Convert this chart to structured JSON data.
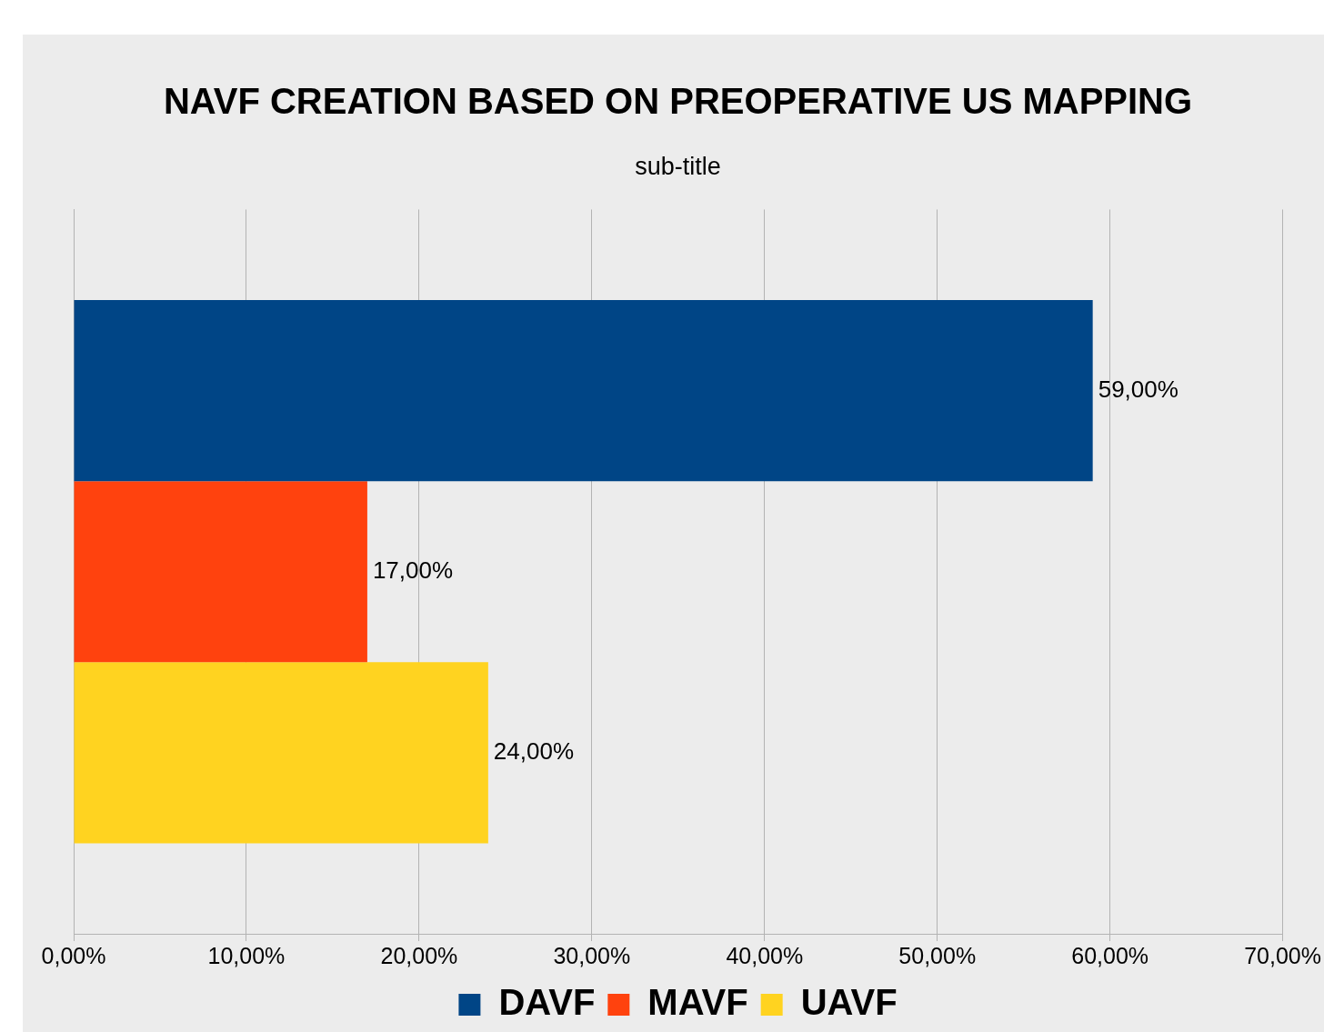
{
  "chart_data": {
    "type": "bar",
    "orientation": "horizontal",
    "title": "NAVF CREATION BASED ON PREOPERATIVE US MAPPING",
    "subtitle": "sub-title",
    "categories": [
      null
    ],
    "series": [
      {
        "name": "DAVF",
        "color": "#004586",
        "values": [
          59
        ],
        "value_labels": [
          "59,00%"
        ]
      },
      {
        "name": "MAVF",
        "color": "#ff420e",
        "values": [
          17
        ],
        "value_labels": [
          "17,00%"
        ]
      },
      {
        "name": "UAVF",
        "color": "#ffd320",
        "values": [
          24
        ],
        "value_labels": [
          "24,00%"
        ]
      }
    ],
    "xlim": [
      0,
      70
    ],
    "xticks": [
      {
        "value": 0,
        "label": "0,00%"
      },
      {
        "value": 10,
        "label": "10,00%"
      },
      {
        "value": 20,
        "label": "20,00%"
      },
      {
        "value": 30,
        "label": "30,00%"
      },
      {
        "value": 40,
        "label": "40,00%"
      },
      {
        "value": 50,
        "label": "50,00%"
      },
      {
        "value": 60,
        "label": "60,00%"
      },
      {
        "value": 70,
        "label": "70,00%"
      }
    ],
    "grid": "x",
    "legend": "bottom"
  }
}
